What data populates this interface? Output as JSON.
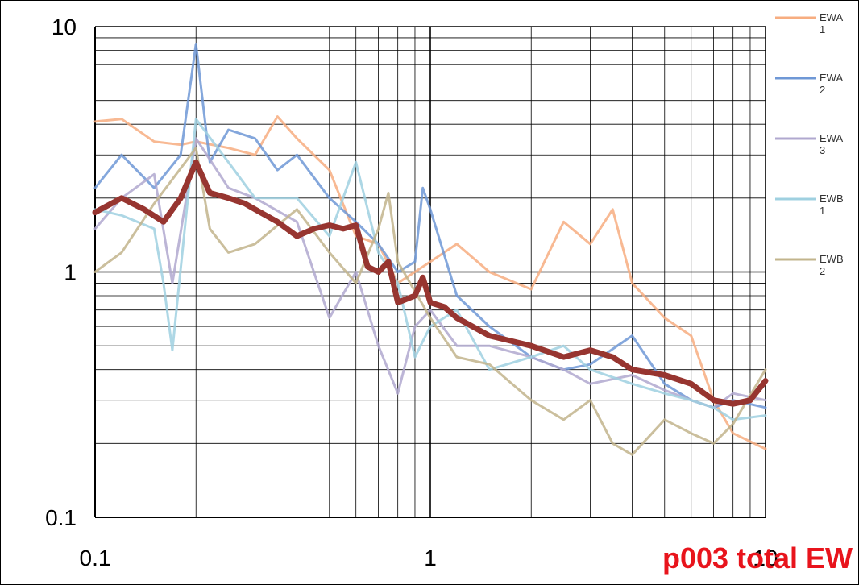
{
  "chart_data": {
    "type": "line",
    "title": "p003 total EW",
    "xlabel": "",
    "ylabel": "",
    "xscale": "log",
    "yscale": "log",
    "xlim": [
      0.1,
      10
    ],
    "ylim": [
      0.1,
      10
    ],
    "grid": true,
    "legend": "right",
    "x_ticks": [
      "0.1",
      "1",
      "10"
    ],
    "y_ticks": [
      "10",
      "1",
      "0.1"
    ],
    "series": [
      {
        "name": "EWA 1",
        "color": "#f7ad80",
        "x": [
          0.1,
          0.12,
          0.15,
          0.18,
          0.2,
          0.25,
          0.3,
          0.35,
          0.4,
          0.5,
          0.6,
          0.7,
          0.8,
          1,
          1.2,
          1.5,
          2,
          2.5,
          3,
          3.5,
          4,
          5,
          6,
          7,
          8,
          10
        ],
        "y": [
          4.1,
          4.2,
          3.4,
          3.3,
          3.4,
          3.2,
          3.0,
          4.3,
          3.5,
          2.6,
          1.4,
          1.3,
          0.9,
          1.1,
          1.3,
          1.0,
          0.85,
          1.6,
          1.3,
          1.8,
          0.9,
          0.65,
          0.55,
          0.3,
          0.22,
          0.19
        ]
      },
      {
        "name": "EWA 2",
        "color": "#6f98d6",
        "x": [
          0.1,
          0.12,
          0.15,
          0.18,
          0.2,
          0.22,
          0.25,
          0.3,
          0.35,
          0.4,
          0.5,
          0.6,
          0.7,
          0.8,
          0.9,
          0.95,
          1,
          1.2,
          1.5,
          2,
          2.5,
          3,
          4,
          5,
          6,
          7,
          8,
          10
        ],
        "y": [
          2.2,
          3.0,
          2.2,
          3.0,
          8.5,
          2.8,
          3.8,
          3.5,
          2.6,
          3.0,
          2.0,
          1.6,
          1.3,
          1.0,
          1.1,
          2.2,
          1.8,
          0.8,
          0.6,
          0.45,
          0.4,
          0.42,
          0.55,
          0.35,
          0.3,
          0.28,
          0.3,
          0.28
        ]
      },
      {
        "name": "EWA 3",
        "color": "#b0a8cf",
        "x": [
          0.1,
          0.12,
          0.15,
          0.17,
          0.2,
          0.25,
          0.3,
          0.4,
          0.5,
          0.6,
          0.7,
          0.8,
          0.9,
          1,
          1.2,
          1.5,
          2,
          2.5,
          3,
          4,
          5,
          6,
          7,
          8,
          10
        ],
        "y": [
          1.5,
          2.0,
          2.5,
          0.9,
          3.5,
          2.2,
          2.0,
          1.6,
          0.65,
          1.0,
          0.5,
          0.32,
          0.6,
          0.7,
          0.5,
          0.5,
          0.45,
          0.4,
          0.35,
          0.38,
          0.33,
          0.3,
          0.28,
          0.32,
          0.3
        ]
      },
      {
        "name": "EWB 1",
        "color": "#9fd0e0",
        "x": [
          0.1,
          0.12,
          0.15,
          0.16,
          0.17,
          0.2,
          0.25,
          0.3,
          0.4,
          0.5,
          0.6,
          0.7,
          0.8,
          0.9,
          1,
          1.2,
          1.5,
          2,
          2.5,
          3,
          4,
          5,
          6,
          7,
          8,
          10
        ],
        "y": [
          1.8,
          1.7,
          1.5,
          0.9,
          0.48,
          4.2,
          2.8,
          2.0,
          2.0,
          1.4,
          2.8,
          1.2,
          0.9,
          0.45,
          0.6,
          0.7,
          0.4,
          0.45,
          0.5,
          0.4,
          0.35,
          0.32,
          0.3,
          0.28,
          0.25,
          0.26
        ]
      },
      {
        "name": "EWB 2",
        "color": "#c2b48c",
        "x": [
          0.1,
          0.12,
          0.15,
          0.2,
          0.22,
          0.25,
          0.3,
          0.4,
          0.5,
          0.6,
          0.7,
          0.75,
          0.8,
          1,
          1.2,
          1.5,
          2,
          2.5,
          3,
          3.5,
          4,
          5,
          6,
          7,
          8,
          10
        ],
        "y": [
          1.0,
          1.2,
          1.9,
          3.2,
          1.5,
          1.2,
          1.3,
          1.8,
          1.2,
          0.9,
          1.5,
          2.1,
          1.1,
          0.65,
          0.45,
          0.42,
          0.3,
          0.25,
          0.3,
          0.2,
          0.18,
          0.25,
          0.22,
          0.2,
          0.24,
          0.4
        ]
      },
      {
        "name": "",
        "color": "#973530",
        "x": [
          0.1,
          0.12,
          0.14,
          0.16,
          0.18,
          0.2,
          0.22,
          0.25,
          0.28,
          0.3,
          0.35,
          0.4,
          0.45,
          0.5,
          0.55,
          0.6,
          0.65,
          0.7,
          0.75,
          0.8,
          0.9,
          0.95,
          1,
          1.1,
          1.2,
          1.5,
          2,
          2.5,
          3,
          3.5,
          4,
          5,
          6,
          7,
          8,
          9,
          10
        ],
        "y": [
          1.75,
          2.0,
          1.8,
          1.6,
          2.0,
          2.8,
          2.1,
          2.0,
          1.9,
          1.8,
          1.6,
          1.4,
          1.5,
          1.55,
          1.5,
          1.55,
          1.05,
          1.0,
          1.1,
          0.75,
          0.8,
          0.95,
          0.75,
          0.72,
          0.65,
          0.55,
          0.5,
          0.45,
          0.48,
          0.45,
          0.4,
          0.38,
          0.35,
          0.3,
          0.29,
          0.3,
          0.36
        ]
      }
    ]
  }
}
